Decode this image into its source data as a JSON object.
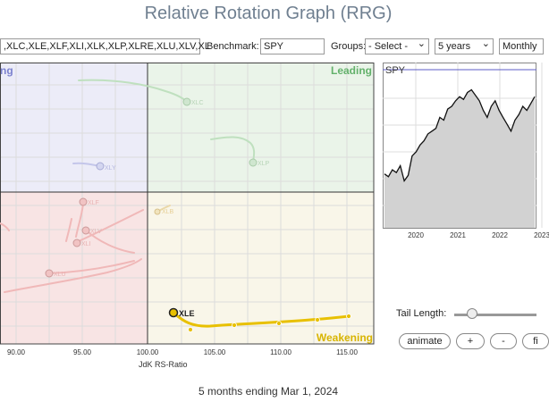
{
  "title": "Relative Rotation Graph (RRG)",
  "toolbar": {
    "symbols_value": ",XLC,XLE,XLF,XLI,XLK,XLP,XLRE,XLU,XLV,XL",
    "benchmark_label": "Benchmark:",
    "benchmark_value": "SPY",
    "groups_label": "Groups:",
    "groups_value": "- Select -",
    "period_value": "5 years",
    "frequency_value": "Monthly"
  },
  "quadrants": {
    "leading": "Leading",
    "weakening": "Weakening",
    "improving": "ng"
  },
  "rrg": {
    "x_ticks": [
      "90.00",
      "95.00",
      "100.00",
      "105.00",
      "110.00",
      "115.00"
    ],
    "x_axis_label": "JdK RS-Ratio",
    "highlighted_label": "XLE",
    "faded_labels": [
      "XLC",
      "XLY",
      "XLF",
      "XLP",
      "XLI",
      "XLV",
      "XLU",
      "XLB",
      "XLK",
      "XLRE"
    ]
  },
  "chart_data": {
    "type": "line",
    "title": "SPY",
    "x_ticks": [
      "2020",
      "2021",
      "2022",
      "2023"
    ],
    "values": [
      39,
      37,
      42,
      40,
      45,
      34,
      38,
      52,
      55,
      60,
      63,
      68,
      70,
      72,
      80,
      78,
      86,
      88,
      92,
      95,
      93,
      98,
      100,
      96,
      92,
      85,
      80,
      88,
      92,
      85,
      80,
      75,
      70,
      78,
      82,
      88,
      85,
      90,
      95
    ]
  },
  "tail": {
    "label": "Tail Length:"
  },
  "buttons": {
    "animate": "animate",
    "plus": "+",
    "minus": "-",
    "more": "fi"
  },
  "footer": "5 months ending Mar 1, 2024",
  "colors": {
    "highlight": "#e8c000",
    "leading": "#63b16b",
    "weakening": "#d8b400",
    "improving": "#7c82cf",
    "lagging": "#e08a8a"
  }
}
